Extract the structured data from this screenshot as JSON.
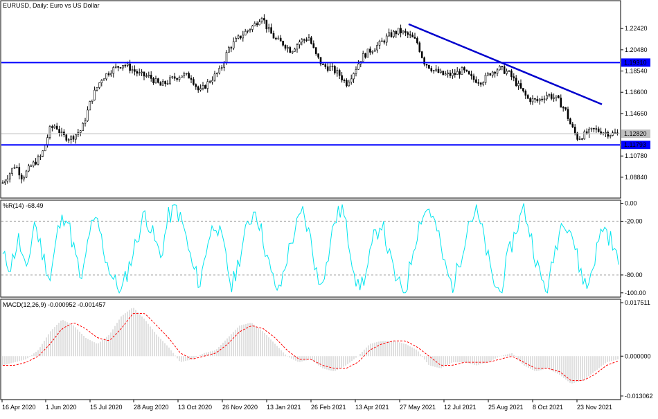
{
  "colors": {
    "price_candle": "#000000",
    "level_line": "#0000ff",
    "trend_line": "#0000cd",
    "current_price_line": "#c0c0c0",
    "williams_line": "#00e5ee",
    "macd_hist": "#c0c0c0",
    "macd_signal": "#ff0000",
    "frame": "#000000",
    "dotted_grid": "#a0a0a0"
  },
  "chart_data": [
    {
      "type": "candlestick",
      "panel": "price",
      "title": "EURUSD, Daily:  Euro vs US Dollar",
      "ylim": [
        1.07,
        1.249
      ],
      "y_ticks": [
        "1.22420",
        "1.20480",
        "1.18540",
        "1.16600",
        "1.14660",
        "1.10780",
        "1.08840"
      ],
      "x_ticks": [
        "16 Apr 2020",
        "1 Jun 2020",
        "15 Jul 2020",
        "28 Aug 2020",
        "13 Oct 2020",
        "26 Nov 2020",
        "13 Jan 2021",
        "26 Feb 2021",
        "13 Apr 2021",
        "27 May 2021",
        "12 Jul 2021",
        "25 Aug 2021",
        "8 Oct 2021",
        "23 Nov 2021"
      ],
      "horizontal_levels": [
        {
          "label": "1.19310",
          "value": 1.1931
        },
        {
          "label": "1.11793",
          "value": 1.11793
        }
      ],
      "current_price": {
        "label": "1.12820",
        "value": 1.1282
      },
      "trend_line": {
        "start": {
          "date": "27 May 2021",
          "value": 1.2282
        },
        "end": {
          "date": "3 Dec 2021",
          "value": 1.155
        }
      },
      "path_keypoints": [
        [
          0,
          1.08
        ],
        [
          14,
          1.092
        ],
        [
          22,
          1.1
        ],
        [
          32,
          1.088
        ],
        [
          44,
          1.098
        ],
        [
          60,
          1.108
        ],
        [
          72,
          1.132
        ],
        [
          80,
          1.136
        ],
        [
          90,
          1.126
        ],
        [
          102,
          1.124
        ],
        [
          118,
          1.132
        ],
        [
          132,
          1.16
        ],
        [
          146,
          1.178
        ],
        [
          160,
          1.186
        ],
        [
          178,
          1.192
        ],
        [
          188,
          1.188
        ],
        [
          202,
          1.182
        ],
        [
          216,
          1.18
        ],
        [
          232,
          1.172
        ],
        [
          248,
          1.178
        ],
        [
          262,
          1.182
        ],
        [
          276,
          1.18
        ],
        [
          288,
          1.166
        ],
        [
          302,
          1.176
        ],
        [
          318,
          1.186
        ],
        [
          330,
          1.206
        ],
        [
          342,
          1.214
        ],
        [
          356,
          1.222
        ],
        [
          368,
          1.228
        ],
        [
          378,
          1.236
        ],
        [
          386,
          1.224
        ],
        [
          398,
          1.214
        ],
        [
          410,
          1.21
        ],
        [
          420,
          1.204
        ],
        [
          432,
          1.212
        ],
        [
          446,
          1.216
        ],
        [
          456,
          1.2
        ],
        [
          466,
          1.19
        ],
        [
          478,
          1.188
        ],
        [
          490,
          1.182
        ],
        [
          500,
          1.174
        ],
        [
          512,
          1.186
        ],
        [
          522,
          1.198
        ],
        [
          534,
          1.204
        ],
        [
          548,
          1.21
        ],
        [
          562,
          1.218
        ],
        [
          576,
          1.222
        ],
        [
          590,
          1.218
        ],
        [
          602,
          1.212
        ],
        [
          612,
          1.194
        ],
        [
          626,
          1.186
        ],
        [
          640,
          1.182
        ],
        [
          654,
          1.182
        ],
        [
          668,
          1.186
        ],
        [
          682,
          1.178
        ],
        [
          696,
          1.176
        ],
        [
          708,
          1.184
        ],
        [
          720,
          1.188
        ],
        [
          734,
          1.184
        ],
        [
          748,
          1.172
        ],
        [
          762,
          1.16
        ],
        [
          776,
          1.158
        ],
        [
          790,
          1.164
        ],
        [
          804,
          1.16
        ],
        [
          816,
          1.15
        ],
        [
          824,
          1.136
        ],
        [
          834,
          1.124
        ],
        [
          846,
          1.128
        ],
        [
          858,
          1.132
        ],
        [
          870,
          1.13
        ],
        [
          882,
          1.128
        ],
        [
          893,
          1.1282
        ]
      ]
    },
    {
      "type": "line",
      "panel": "williams_r",
      "title": "%R(14) -68.49",
      "ylim": [
        -104,
        2
      ],
      "y_ticks": [
        "0.00",
        "-20.00",
        "-80.00",
        "-100.00"
      ],
      "dotted_levels": [
        -20,
        -80
      ],
      "series": [
        {
          "values": [
            -60,
            -70,
            -40,
            -80,
            -20,
            -55,
            -85,
            -30,
            -10,
            -50,
            -90,
            -30,
            -20,
            -60,
            -85,
            -100,
            -70,
            -40,
            -10,
            -35,
            -60,
            -15,
            -5,
            -30,
            -70,
            -90,
            -40,
            -20,
            -50,
            -95,
            -60,
            -25,
            -5,
            -40,
            -80,
            -100,
            -60,
            -30,
            -10,
            -40,
            -90,
            -70,
            -20,
            -5,
            -50,
            -95,
            -80,
            -40,
            -20,
            -60,
            -90,
            -100,
            -50,
            -15,
            -5,
            -30,
            -70,
            -95,
            -60,
            -20,
            -10,
            -40,
            -85,
            -100,
            -60,
            -30,
            -5,
            -40,
            -80,
            -100,
            -50,
            -15,
            -30,
            -70,
            -95,
            -60,
            -25,
            -40,
            -68.49
          ]
        }
      ]
    },
    {
      "type": "line+bar",
      "panel": "macd",
      "title": "MACD(12,26,9) -0.000952 -0.001457",
      "ylim": [
        -0.014,
        0.0182
      ],
      "y_ticks": [
        "0.017511",
        "0.000000",
        "-0.013062"
      ],
      "series": [
        {
          "name": "MACD",
          "values": [
            -0.003,
            -0.002,
            -0.001,
            0.002,
            0.008,
            0.012,
            0.01,
            0.006,
            0.004,
            0.007,
            0.013,
            0.016,
            0.012,
            0.007,
            0.003,
            -0.002,
            -0.001,
            0.001,
            0.002,
            0.006,
            0.01,
            0.011,
            0.008,
            0.004,
            0.0,
            -0.002,
            -0.001,
            -0.004,
            -0.005,
            -0.003,
            0.0,
            0.004,
            0.005,
            0.005,
            0.004,
            0.002,
            -0.003,
            -0.004,
            -0.002,
            -0.002,
            -0.003,
            -0.002,
            0.0,
            0.001,
            -0.003,
            -0.005,
            -0.004,
            -0.006,
            -0.009,
            -0.008,
            -0.005,
            -0.002,
            -0.001
          ]
        },
        {
          "name": "Signal",
          "values": [
            -0.003,
            -0.003,
            -0.002,
            0.0,
            0.004,
            0.009,
            0.011,
            0.009,
            0.006,
            0.005,
            0.009,
            0.014,
            0.014,
            0.01,
            0.006,
            0.001,
            -0.001,
            0.0,
            0.001,
            0.004,
            0.008,
            0.01,
            0.009,
            0.006,
            0.002,
            -0.001,
            -0.001,
            -0.003,
            -0.004,
            -0.004,
            -0.002,
            0.002,
            0.004,
            0.005,
            0.005,
            0.003,
            0.0,
            -0.003,
            -0.003,
            -0.002,
            -0.002,
            -0.002,
            -0.001,
            0.0,
            -0.002,
            -0.004,
            -0.004,
            -0.005,
            -0.008,
            -0.008,
            -0.006,
            -0.003,
            -0.0015
          ]
        }
      ]
    }
  ]
}
